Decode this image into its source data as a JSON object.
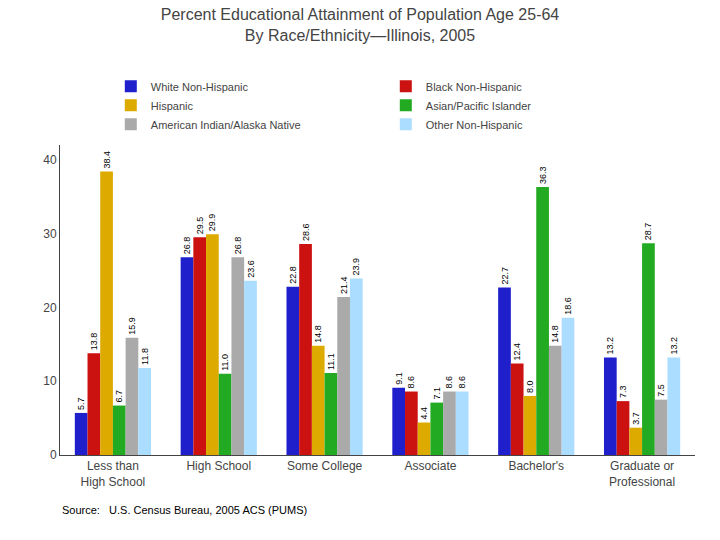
{
  "chart_data": {
    "type": "bar",
    "title": "Percent Educational Attainment of Population Age 25-64\nBy Race/Ethnicity—Illinois, 2005",
    "annotations": [
      "Source:   U.S. Census Bureau, 2005 ACS (PUMS)"
    ],
    "categories": [
      "Less than\nHigh School",
      "High School",
      "Some College",
      "Associate",
      "Bachelor's",
      "Graduate or\nProfessional"
    ],
    "series": [
      {
        "name": "White Non-Hispanic",
        "color": "#1F1FCC",
        "values": [
          5.7,
          26.8,
          22.8,
          9.1,
          22.7,
          13.2
        ]
      },
      {
        "name": "Black Non-Hispanic",
        "color": "#CC1111",
        "values": [
          13.8,
          29.5,
          28.6,
          8.6,
          12.4,
          7.3
        ]
      },
      {
        "name": "Hispanic",
        "color": "#DDAA00",
        "values": [
          38.4,
          29.9,
          14.8,
          4.4,
          8.0,
          3.7
        ],
        "value_labels": [
          "38.4",
          "29.9",
          "14.8",
          "4.4",
          "8.0",
          "3.7"
        ]
      },
      {
        "name": "Asian/Pacific Islander",
        "color": "#22AA22",
        "values": [
          6.7,
          11.0,
          11.1,
          7.1,
          36.3,
          28.7
        ],
        "value_labels": [
          "6.7",
          "11.0",
          "11.1",
          "7.1",
          "36.3",
          "28.7"
        ]
      },
      {
        "name": "American Indian/Alaska Native",
        "color": "#AAAAAA",
        "values": [
          15.9,
          26.8,
          21.4,
          8.6,
          14.8,
          7.5
        ]
      },
      {
        "name": "Other Non-Hispanic",
        "color": "#AADDFF",
        "values": [
          11.8,
          23.6,
          23.9,
          8.6,
          18.6,
          13.2
        ]
      }
    ],
    "ylim": [
      0,
      42
    ],
    "yticks": [
      0,
      10,
      20,
      30,
      40
    ],
    "grid": false,
    "legend": "top",
    "data_labels": true
  }
}
